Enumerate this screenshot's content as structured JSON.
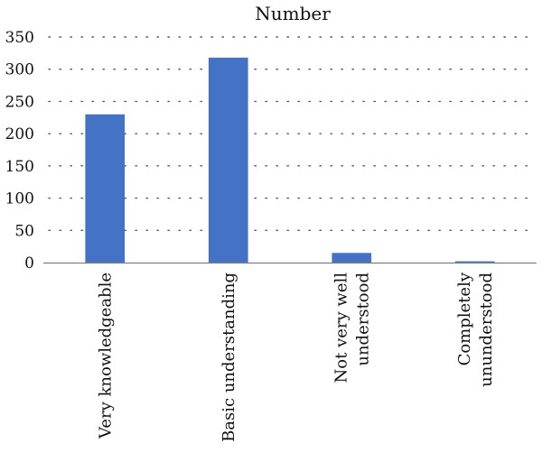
{
  "chart_data": {
    "type": "bar",
    "title": "Number",
    "xlabel": "",
    "ylabel": "",
    "categories": [
      [
        "Very knowledgeable"
      ],
      [
        "Basic understanding"
      ],
      [
        "Not very well",
        "understood"
      ],
      [
        "Completely",
        "ununderstood"
      ]
    ],
    "values": [
      230,
      318,
      15,
      2
    ],
    "ylim": [
      0,
      350
    ],
    "yticks": [
      0,
      50,
      100,
      150,
      200,
      250,
      300,
      350
    ],
    "grid": true,
    "legend": "none",
    "bar_color": "#4472c4"
  }
}
